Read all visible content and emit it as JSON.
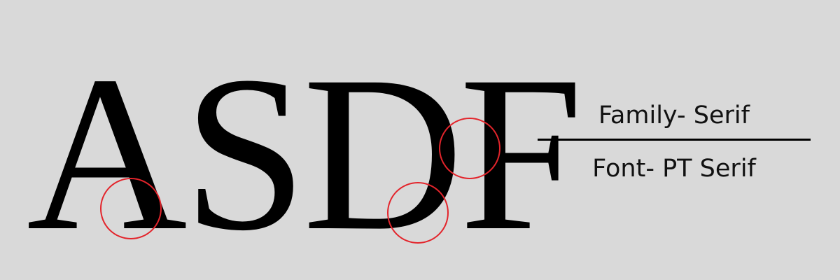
{
  "specimen": {
    "letters": "ASDF"
  },
  "captions": {
    "family": "Family- Serif",
    "font": "Font- PT Serif"
  },
  "colors": {
    "background": "#d9d9d9",
    "letters": "#000000",
    "highlight_circle": "#e3242b",
    "divider": "#000000"
  }
}
